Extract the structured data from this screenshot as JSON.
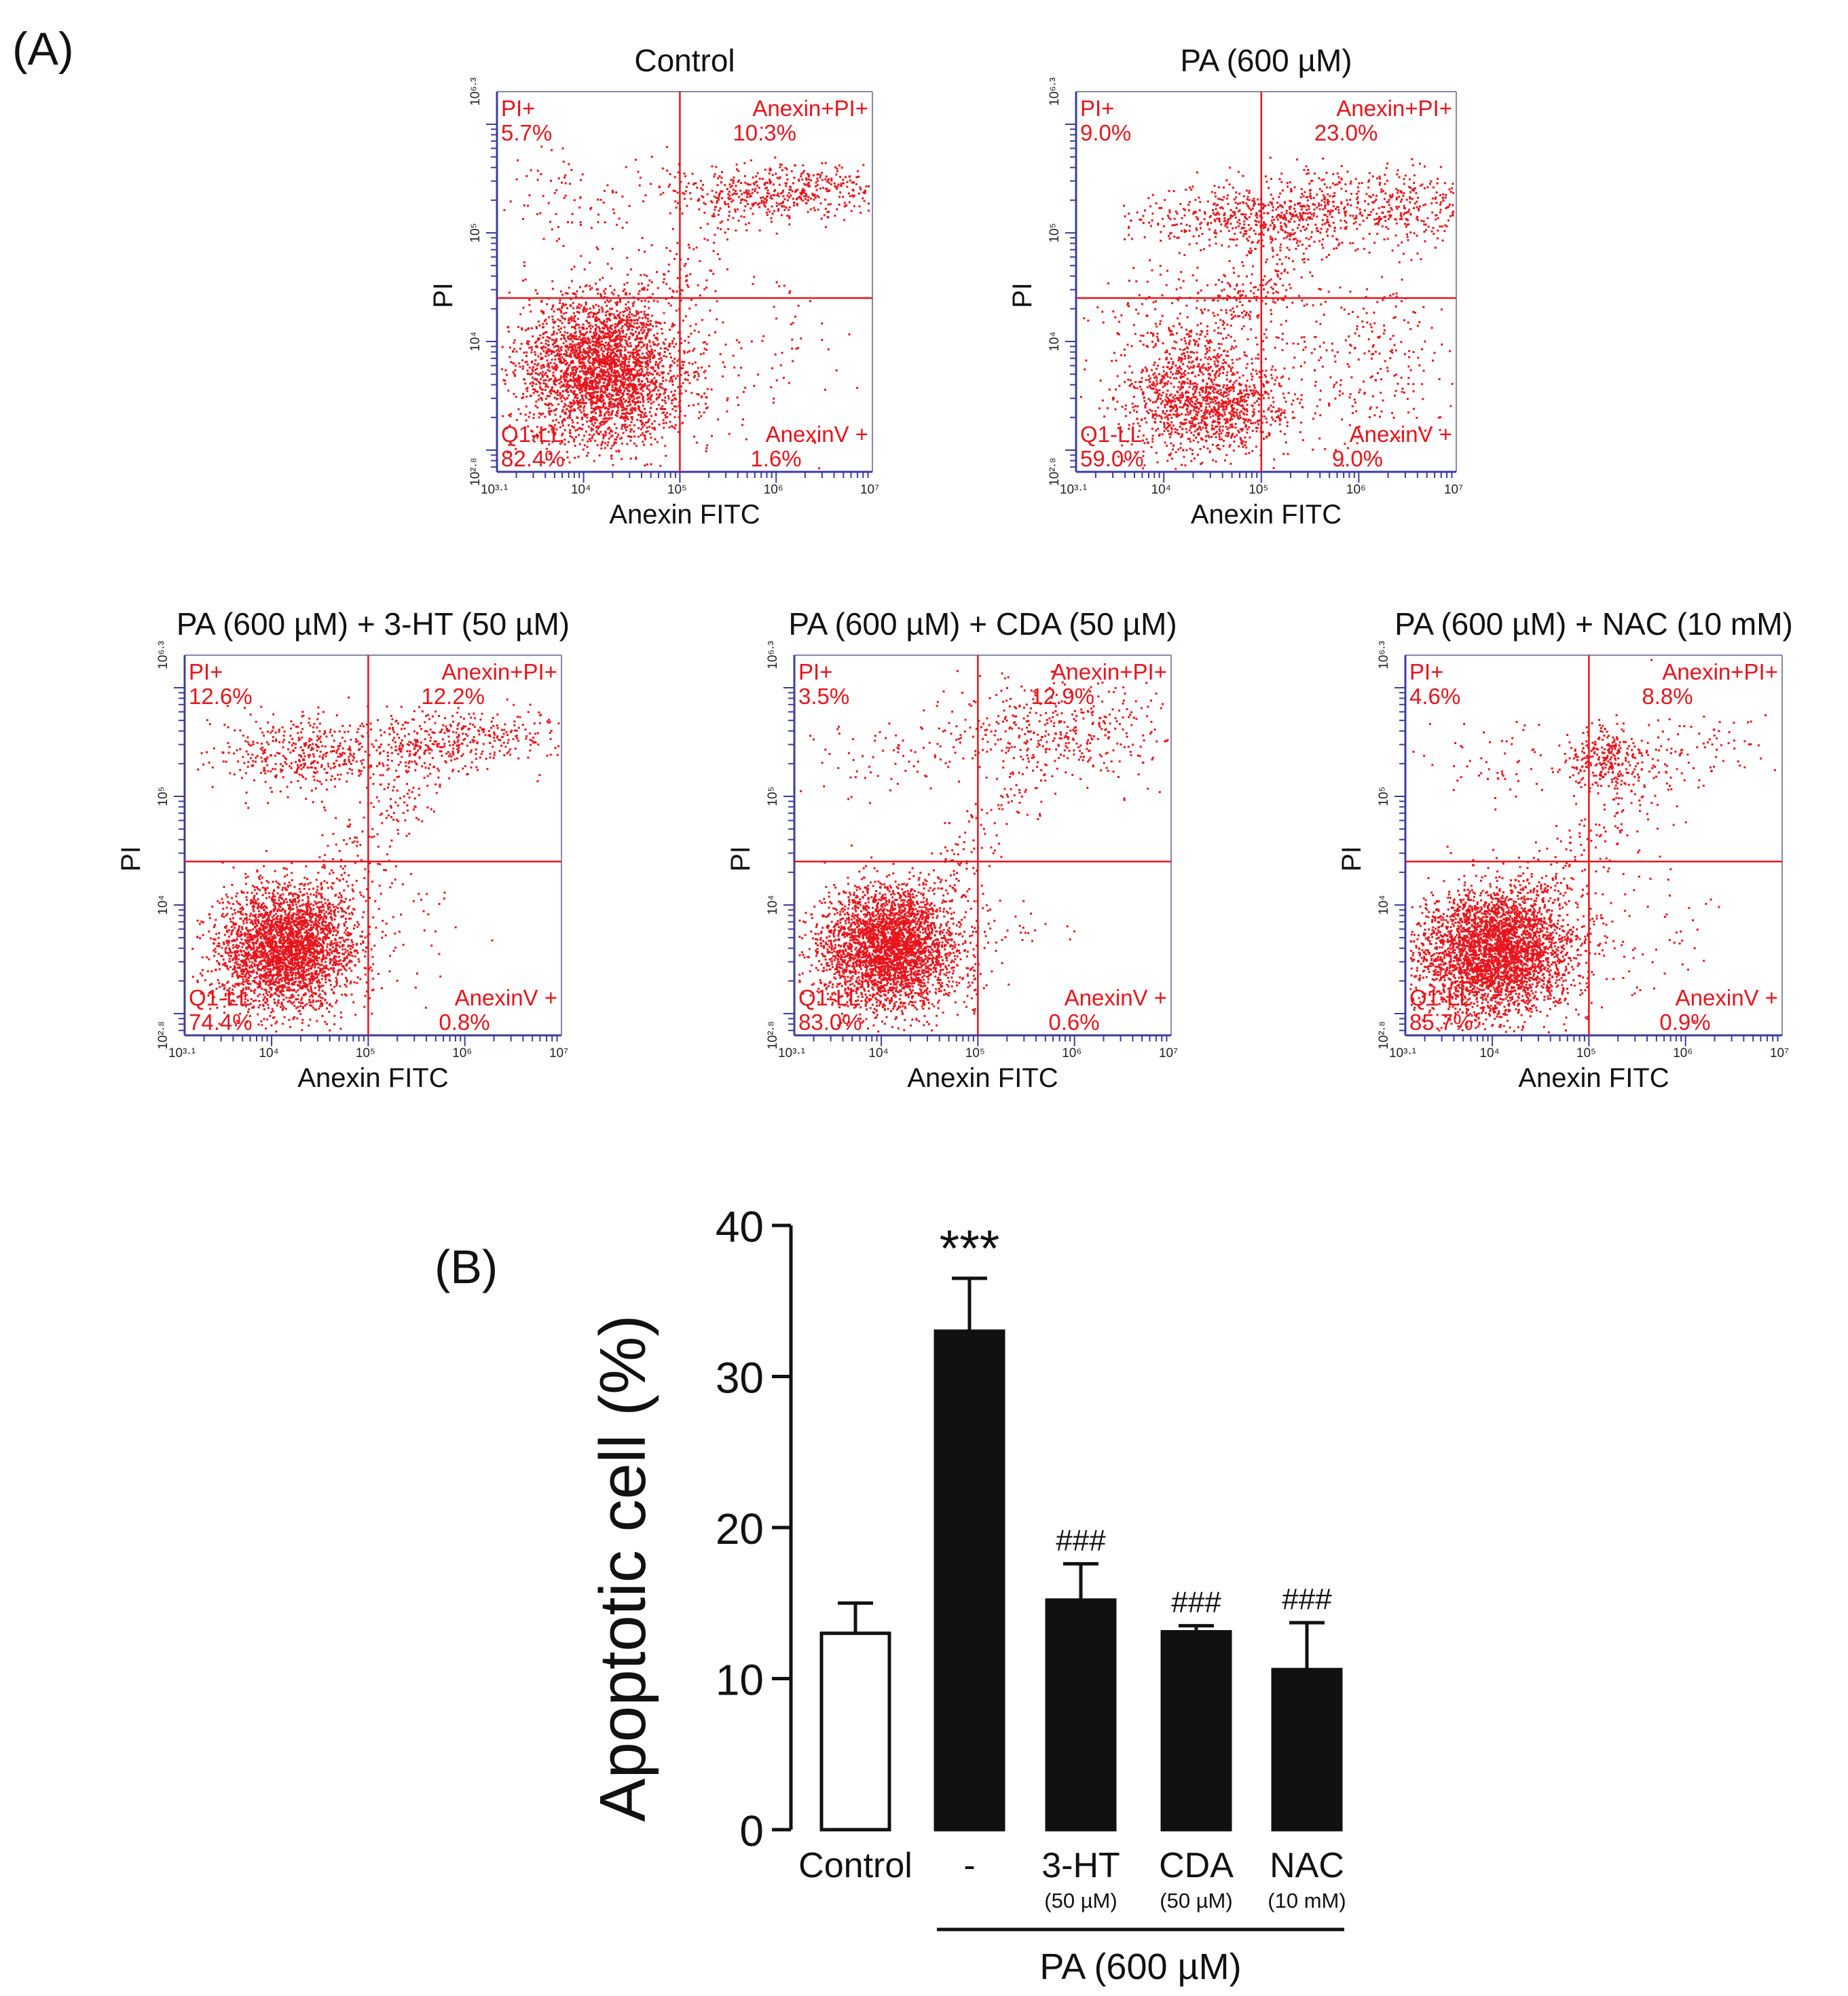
{
  "panel_a": {
    "label": "(A)",
    "xlabel": "Anexin FITC",
    "ylabel": "PI",
    "x_ticks": [
      "10³·¹",
      "10⁴",
      "10⁵",
      "10⁶",
      "10⁷"
    ],
    "y_ticks": [
      "10²·⁸",
      "10⁴",
      "10⁵",
      "10⁶·³"
    ],
    "plots": [
      {
        "title": "Control",
        "ul": "PI+",
        "ul_val": "5.7%",
        "ur": "Anexin+PI+",
        "ur_val": "10.3%",
        "ll": "Q1-LL",
        "ll_val": "82.4%",
        "lr": "AnexinV +",
        "lr_val": "1.6%"
      },
      {
        "title": "PA (600 µM)",
        "ul": "PI+",
        "ul_val": "9.0%",
        "ur": "Anexin+PI+",
        "ur_val": "23.0%",
        "ll": "Q1-LL",
        "ll_val": "59.0%",
        "lr": "AnexinV +",
        "lr_val": "9.0%"
      },
      {
        "title": "PA (600 µM) + 3-HT (50 µM)",
        "ul": "PI+",
        "ul_val": "12.6%",
        "ur": "Anexin+PI+",
        "ur_val": "12.2%",
        "ll": "Q1-LL",
        "ll_val": "74.4%",
        "lr": "AnexinV +",
        "lr_val": "0.8%"
      },
      {
        "title": "PA (600 µM) + CDA (50 µM)",
        "ul": "PI+",
        "ul_val": "3.5%",
        "ur": "Anexin+PI+",
        "ur_val": "12.9%",
        "ll": "Q1-LL",
        "ll_val": "83.0%",
        "lr": "AnexinV +",
        "lr_val": "0.6%"
      },
      {
        "title": "PA (600 µM) + NAC (10 mM)",
        "ul": "PI+",
        "ul_val": "4.6%",
        "ur": "Anexin+PI+",
        "ur_val": "8.8%",
        "ll": "Q1-LL",
        "ll_val": "85.7%",
        "lr": "AnexinV +",
        "lr_val": "0.9%"
      }
    ]
  },
  "panel_b": {
    "label": "(B)",
    "group_label": "PA (600 µM)"
  },
  "colors": {
    "dots": "#e8141c",
    "axis": "#3c3ca0",
    "bar_fill": "#111111"
  },
  "chart_data": [
    {
      "type": "scatter",
      "panel": "A",
      "xlabel": "Anexin FITC",
      "ylabel": "PI",
      "x_scale": "log",
      "y_scale": "log",
      "xlim": [
        1259,
        10000000
      ],
      "ylim": [
        631,
        1995262
      ],
      "quadrant_gates": {
        "x": 100000,
        "y": 25119
      },
      "plots": [
        {
          "title": "Control",
          "quadrants": {
            "PI+": 5.7,
            "Anexin+PI+": 10.3,
            "Q1-LL": 82.4,
            "AnexinV +": 1.6
          }
        },
        {
          "title": "PA (600 µM)",
          "quadrants": {
            "PI+": 9.0,
            "Anexin+PI+": 23.0,
            "Q1-LL": 59.0,
            "AnexinV +": 9.0
          }
        },
        {
          "title": "PA (600 µM) + 3-HT (50 µM)",
          "quadrants": {
            "PI+": 12.6,
            "Anexin+PI+": 12.2,
            "Q1-LL": 74.4,
            "AnexinV +": 0.8
          }
        },
        {
          "title": "PA (600 µM) + CDA (50 µM)",
          "quadrants": {
            "PI+": 3.5,
            "Anexin+PI+": 12.9,
            "Q1-LL": 83.0,
            "AnexinV +": 0.6
          }
        },
        {
          "title": "PA (600 µM) + NAC (10 mM)",
          "quadrants": {
            "PI+": 4.6,
            "Anexin+PI+": 8.8,
            "Q1-LL": 85.7,
            "AnexinV +": 0.9
          }
        }
      ]
    },
    {
      "type": "bar",
      "panel": "B",
      "title": "",
      "xlabel": "",
      "ylabel": "Apoptotic cell (%)",
      "ylim": [
        0,
        40
      ],
      "yticks": [
        0,
        10,
        20,
        30,
        40
      ],
      "categories": [
        "Control",
        "-",
        "3-HT",
        "CDA",
        "NAC"
      ],
      "sublabels": [
        "",
        "",
        "(50 µM)",
        "(50 µM)",
        "(10 mM)"
      ],
      "values": [
        13.0,
        33.0,
        15.2,
        13.1,
        10.6
      ],
      "errors": [
        2.0,
        3.5,
        2.4,
        0.4,
        3.1
      ],
      "fills": [
        "open",
        "filled",
        "filled",
        "filled",
        "filled"
      ],
      "annotations": [
        "",
        "***",
        "###",
        "###",
        "###"
      ]
    }
  ]
}
